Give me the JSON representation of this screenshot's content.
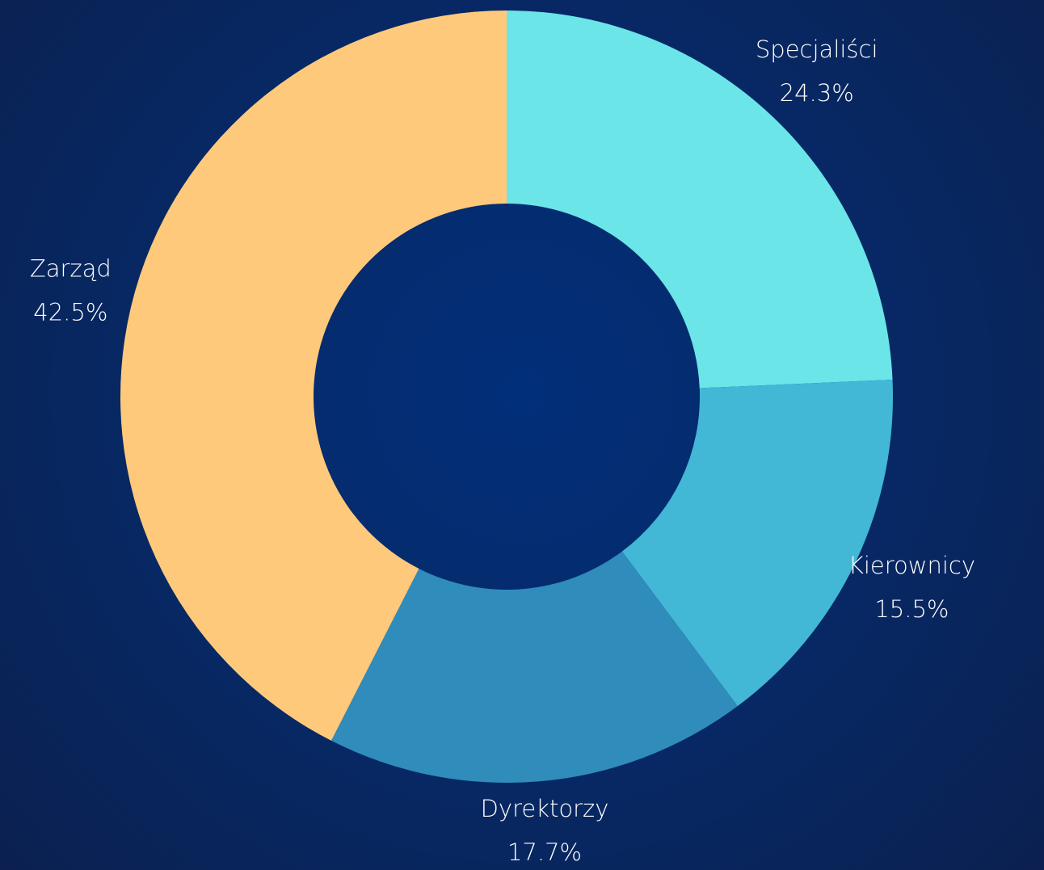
{
  "chart_data": {
    "type": "donut",
    "categories": [
      "Specjaliści",
      "Kierownicy",
      "Dyrektorzy",
      "Zarząd"
    ],
    "values": [
      24.3,
      15.5,
      17.7,
      42.5
    ],
    "value_labels": [
      "24.3%",
      "15.5%",
      "17.7%",
      "42.5%"
    ],
    "colors": [
      "#6be5e8",
      "#42b7d6",
      "#2f8cbb",
      "#fec97b"
    ]
  }
}
